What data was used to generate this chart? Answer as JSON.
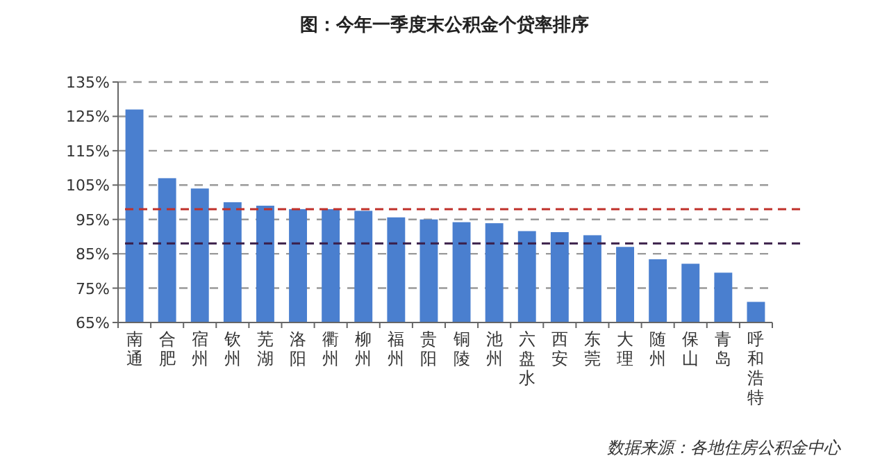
{
  "chart_data": {
    "type": "bar",
    "title": "图：今年一季度末公积金个贷率排序",
    "categories": [
      "南通",
      "合肥",
      "宿州",
      "钦州",
      "芜湖",
      "洛阳",
      "衢州",
      "柳州",
      "福州",
      "贵阳",
      "铜陵",
      "池州",
      "六盘水",
      "西安",
      "东莞",
      "大理",
      "随州",
      "保山",
      "青岛",
      "呼和浩特"
    ],
    "values": [
      127,
      107,
      104,
      100,
      99,
      98,
      98,
      97.5,
      95.6,
      95,
      94.2,
      93.9,
      91.6,
      91.3,
      90.4,
      87,
      83.4,
      82.1,
      79.5,
      71
    ],
    "color": "#4a7fcf",
    "ylim": [
      65,
      135
    ],
    "yticks": [
      {
        "value": 65,
        "label": "65%"
      },
      {
        "value": 75,
        "label": "75%"
      },
      {
        "value": 85,
        "label": "85%"
      },
      {
        "value": 95,
        "label": "95%"
      },
      {
        "value": 105,
        "label": "105%"
      },
      {
        "value": 115,
        "label": "115%"
      },
      {
        "value": 125,
        "label": "125%"
      },
      {
        "value": 135,
        "label": "135%"
      }
    ],
    "grid": "y",
    "ref_lines": [
      {
        "axis": "y",
        "value": 98,
        "color": "#c0302a",
        "line_style": "dashed"
      },
      {
        "axis": "y",
        "value": 88,
        "color": "#3a1f4a",
        "line_style": "dashed"
      }
    ],
    "annotations": [
      "数据来源：各地住房公积金中心"
    ]
  }
}
